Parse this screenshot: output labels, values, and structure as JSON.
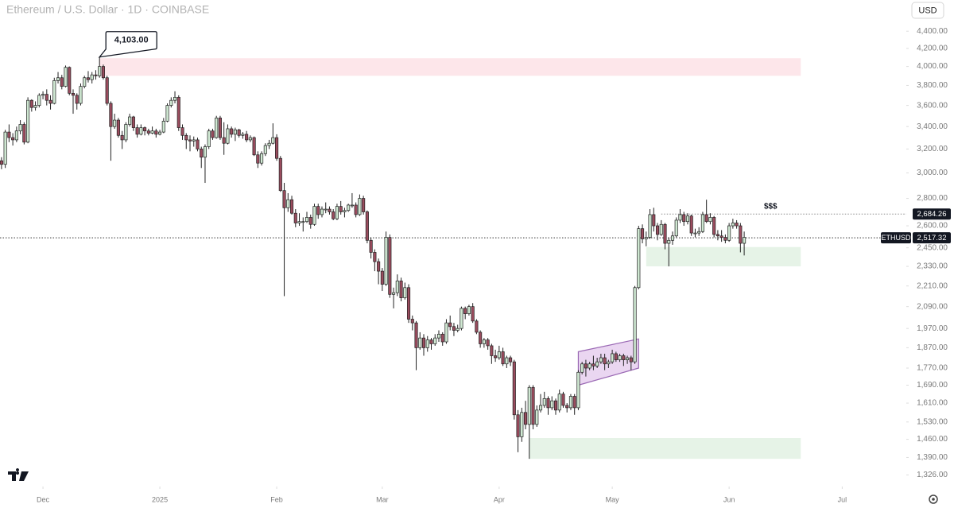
{
  "currency": "USD",
  "chart_data": {
    "type": "candlestick",
    "title": "Ethereum / U.S. Dollar · 1D · COINBASE",
    "log_scale": true,
    "grid": false,
    "color_up": "#cfe8d2",
    "color_down": "#9a4c5e",
    "outline": "#222222",
    "xlim": [
      -0.4,
      240
    ],
    "ylim": [
      1285,
      4787
    ],
    "xticks": [
      {
        "value": 11,
        "label": "Dec"
      },
      {
        "value": 42,
        "label": "2025"
      },
      {
        "value": 73,
        "label": "Feb"
      },
      {
        "value": 101,
        "label": "Mar"
      },
      {
        "value": 132,
        "label": "Apr"
      },
      {
        "value": 162,
        "label": "May"
      },
      {
        "value": 193,
        "label": "Jun"
      },
      {
        "value": 223,
        "label": "Jul"
      }
    ],
    "yticks": [
      {
        "value": 4400,
        "label": "4,400.00"
      },
      {
        "value": 4200,
        "label": "4,200.00"
      },
      {
        "value": 4000,
        "label": "4,000.00"
      },
      {
        "value": 3800,
        "label": "3,800.00"
      },
      {
        "value": 3600,
        "label": "3,600.00"
      },
      {
        "value": 3400,
        "label": "3,400.00"
      },
      {
        "value": 3200,
        "label": "3,200.00"
      },
      {
        "value": 3000,
        "label": "3,000.00"
      },
      {
        "value": 2800,
        "label": "2,800.00"
      },
      {
        "value": 2600,
        "label": "2,600.00"
      },
      {
        "value": 2450,
        "label": "2,450.00"
      },
      {
        "value": 2330,
        "label": "2,330.00"
      },
      {
        "value": 2210,
        "label": "2,210.00"
      },
      {
        "value": 2090,
        "label": "2,090.00"
      },
      {
        "value": 1970,
        "label": "1,970.00"
      },
      {
        "value": 1870,
        "label": "1,870.00"
      },
      {
        "value": 1770,
        "label": "1,770.00"
      },
      {
        "value": 1690,
        "label": "1,690.00"
      },
      {
        "value": 1610,
        "label": "1,610.00"
      },
      {
        "value": 1530,
        "label": "1,530.00"
      },
      {
        "value": 1460,
        "label": "1,460.00"
      },
      {
        "value": 1390,
        "label": "1,390.00"
      },
      {
        "value": 1326,
        "label": "1,326.00"
      }
    ],
    "zones": [
      {
        "from": 26,
        "to": 212,
        "low": 3900,
        "high": 4090,
        "color": "#fde6ea"
      },
      {
        "from": 171,
        "to": 212,
        "low": 2330,
        "high": 2455,
        "color": "#e6f3e7"
      },
      {
        "from": 140,
        "to": 212,
        "low": 1385,
        "high": 1465,
        "color": "#e6f3e7"
      }
    ],
    "channel": {
      "from": 153,
      "to": 169,
      "lower": [
        1690,
        1770
      ],
      "upper": [
        1850,
        1915
      ],
      "color": "#e3c8ec",
      "stroke": "#9a68b4"
    },
    "price_lines": [
      {
        "value": 2684.26,
        "label": "2,684.26",
        "from": 175,
        "color": "#8a8a8a"
      },
      {
        "value": 2517.32,
        "label": "2,517.32",
        "name": "ETHUSD",
        "from": -0.4,
        "color": "#333333"
      }
    ],
    "annotations": [
      {
        "text": "4,103.00",
        "x": 26,
        "y": 4103
      },
      {
        "text": "$$$",
        "x": 204,
        "y": 2740
      }
    ],
    "values": [
      [
        3100,
        3130,
        3030,
        3070
      ],
      [
        3070,
        3370,
        3040,
        3350
      ],
      [
        3350,
        3420,
        3260,
        3300
      ],
      [
        3300,
        3340,
        3230,
        3280
      ],
      [
        3280,
        3400,
        3260,
        3360
      ],
      [
        3360,
        3460,
        3330,
        3420
      ],
      [
        3420,
        3440,
        3240,
        3260
      ],
      [
        3260,
        3680,
        3250,
        3650
      ],
      [
        3650,
        3660,
        3540,
        3580
      ],
      [
        3580,
        3640,
        3550,
        3600
      ],
      [
        3600,
        3720,
        3580,
        3700
      ],
      [
        3700,
        3740,
        3660,
        3710
      ],
      [
        3710,
        3760,
        3600,
        3650
      ],
      [
        3650,
        3700,
        3560,
        3620
      ],
      [
        3620,
        3880,
        3610,
        3850
      ],
      [
        3850,
        3940,
        3820,
        3880
      ],
      [
        3880,
        3910,
        3760,
        3790
      ],
      [
        3790,
        4010,
        3780,
        3990
      ],
      [
        3990,
        4000,
        3700,
        3720
      ],
      [
        3720,
        3760,
        3520,
        3700
      ],
      [
        3700,
        3720,
        3560,
        3620
      ],
      [
        3620,
        3820,
        3600,
        3790
      ],
      [
        3790,
        3900,
        3770,
        3880
      ],
      [
        3880,
        3950,
        3830,
        3860
      ],
      [
        3860,
        3940,
        3820,
        3910
      ],
      [
        3910,
        3960,
        3860,
        3900
      ],
      [
        3900,
        4103,
        3880,
        4000
      ],
      [
        4000,
        4020,
        3860,
        3880
      ],
      [
        3880,
        3900,
        3600,
        3620
      ],
      [
        3620,
        3640,
        3100,
        3400
      ],
      [
        3400,
        3520,
        3380,
        3460
      ],
      [
        3460,
        3480,
        3300,
        3320
      ],
      [
        3320,
        3360,
        3200,
        3280
      ],
      [
        3280,
        3440,
        3260,
        3420
      ],
      [
        3420,
        3520,
        3400,
        3490
      ],
      [
        3490,
        3500,
        3360,
        3390
      ],
      [
        3390,
        3420,
        3300,
        3330
      ],
      [
        3330,
        3420,
        3320,
        3390
      ],
      [
        3390,
        3400,
        3320,
        3360
      ],
      [
        3360,
        3380,
        3320,
        3340
      ],
      [
        3340,
        3400,
        3330,
        3360
      ],
      [
        3360,
        3380,
        3300,
        3330
      ],
      [
        3330,
        3370,
        3320,
        3350
      ],
      [
        3350,
        3480,
        3340,
        3450
      ],
      [
        3450,
        3620,
        3440,
        3600
      ],
      [
        3600,
        3680,
        3580,
        3650
      ],
      [
        3650,
        3740,
        3620,
        3680
      ],
      [
        3680,
        3700,
        3360,
        3390
      ],
      [
        3390,
        3420,
        3280,
        3320
      ],
      [
        3320,
        3340,
        3200,
        3280
      ],
      [
        3280,
        3320,
        3180,
        3270
      ],
      [
        3270,
        3310,
        3220,
        3280
      ],
      [
        3280,
        3300,
        3180,
        3200
      ],
      [
        3200,
        3220,
        3040,
        3130
      ],
      [
        3130,
        3240,
        2920,
        3220
      ],
      [
        3220,
        3380,
        3200,
        3360
      ],
      [
        3360,
        3380,
        3280,
        3300
      ],
      [
        3300,
        3500,
        3290,
        3480
      ],
      [
        3480,
        3500,
        3280,
        3300
      ],
      [
        3300,
        3440,
        3150,
        3250
      ],
      [
        3250,
        3420,
        3240,
        3380
      ],
      [
        3380,
        3400,
        3300,
        3330
      ],
      [
        3330,
        3390,
        3270,
        3370
      ],
      [
        3370,
        3380,
        3300,
        3320
      ],
      [
        3320,
        3350,
        3290,
        3330
      ],
      [
        3330,
        3360,
        3260,
        3280
      ],
      [
        3280,
        3320,
        3260,
        3300
      ],
      [
        3300,
        3310,
        3140,
        3150
      ],
      [
        3150,
        3180,
        3040,
        3080
      ],
      [
        3080,
        3180,
        3060,
        3160
      ],
      [
        3160,
        3250,
        3140,
        3230
      ],
      [
        3230,
        3280,
        3200,
        3250
      ],
      [
        3250,
        3430,
        3240,
        3300
      ],
      [
        3300,
        3330,
        3100,
        3120
      ],
      [
        3120,
        3140,
        2850,
        2860
      ],
      [
        2860,
        2920,
        2150,
        2730
      ],
      [
        2730,
        2840,
        2700,
        2790
      ],
      [
        2790,
        2820,
        2680,
        2690
      ],
      [
        2690,
        2720,
        2590,
        2620
      ],
      [
        2620,
        2690,
        2600,
        2630
      ],
      [
        2630,
        2660,
        2560,
        2630
      ],
      [
        2630,
        2700,
        2620,
        2660
      ],
      [
        2660,
        2680,
        2580,
        2610
      ],
      [
        2610,
        2760,
        2600,
        2740
      ],
      [
        2740,
        2760,
        2650,
        2680
      ],
      [
        2680,
        2740,
        2660,
        2720
      ],
      [
        2720,
        2770,
        2690,
        2720
      ],
      [
        2720,
        2740,
        2680,
        2700
      ],
      [
        2700,
        2720,
        2640,
        2650
      ],
      [
        2650,
        2760,
        2640,
        2740
      ],
      [
        2740,
        2780,
        2680,
        2700
      ],
      [
        2700,
        2730,
        2660,
        2710
      ],
      [
        2710,
        2760,
        2700,
        2750
      ],
      [
        2750,
        2840,
        2730,
        2750
      ],
      [
        2750,
        2770,
        2660,
        2680
      ],
      [
        2680,
        2830,
        2670,
        2800
      ],
      [
        2800,
        2820,
        2680,
        2700
      ],
      [
        2700,
        2710,
        2480,
        2500
      ],
      [
        2500,
        2520,
        2380,
        2420
      ],
      [
        2420,
        2440,
        2300,
        2360
      ],
      [
        2360,
        2380,
        2220,
        2300
      ],
      [
        2300,
        2320,
        2180,
        2220
      ],
      [
        2220,
        2560,
        2210,
        2520
      ],
      [
        2520,
        2540,
        2140,
        2160
      ],
      [
        2160,
        2200,
        2080,
        2170
      ],
      [
        2170,
        2280,
        2150,
        2240
      ],
      [
        2240,
        2260,
        2120,
        2140
      ],
      [
        2140,
        2230,
        2130,
        2200
      ],
      [
        2200,
        2220,
        2000,
        2020
      ],
      [
        2020,
        2040,
        1960,
        2000
      ],
      [
        2000,
        2010,
        1760,
        1870
      ],
      [
        1870,
        1950,
        1860,
        1920
      ],
      [
        1920,
        1940,
        1830,
        1870
      ],
      [
        1870,
        1930,
        1850,
        1910
      ],
      [
        1910,
        1920,
        1860,
        1890
      ],
      [
        1890,
        1940,
        1880,
        1920
      ],
      [
        1920,
        1960,
        1900,
        1940
      ],
      [
        1940,
        1950,
        1880,
        1900
      ],
      [
        1900,
        2020,
        1890,
        2000
      ],
      [
        2000,
        2040,
        1960,
        1980
      ],
      [
        1980,
        2000,
        1930,
        1960
      ],
      [
        1960,
        1990,
        1950,
        1970
      ],
      [
        1970,
        2090,
        1960,
        2080
      ],
      [
        2080,
        2090,
        2020,
        2050
      ],
      [
        2050,
        2100,
        2040,
        2090
      ],
      [
        2090,
        2110,
        2000,
        2010
      ],
      [
        2010,
        2020,
        1940,
        1950
      ],
      [
        1950,
        1960,
        1870,
        1890
      ],
      [
        1890,
        1920,
        1870,
        1910
      ],
      [
        1910,
        1920,
        1860,
        1880
      ],
      [
        1880,
        1890,
        1790,
        1830
      ],
      [
        1830,
        1860,
        1800,
        1820
      ],
      [
        1820,
        1880,
        1810,
        1850
      ],
      [
        1850,
        1870,
        1780,
        1790
      ],
      [
        1790,
        1830,
        1770,
        1820
      ],
      [
        1820,
        1830,
        1780,
        1800
      ],
      [
        1800,
        1810,
        1540,
        1560
      ],
      [
        1560,
        1580,
        1410,
        1470
      ],
      [
        1470,
        1590,
        1450,
        1570
      ],
      [
        1570,
        1620,
        1500,
        1520
      ],
      [
        1520,
        1690,
        1385,
        1680
      ],
      [
        1680,
        1690,
        1500,
        1520
      ],
      [
        1520,
        1600,
        1510,
        1580
      ],
      [
        1580,
        1650,
        1570,
        1600
      ],
      [
        1600,
        1660,
        1590,
        1630
      ],
      [
        1630,
        1640,
        1560,
        1590
      ],
      [
        1590,
        1640,
        1580,
        1620
      ],
      [
        1620,
        1630,
        1560,
        1580
      ],
      [
        1580,
        1670,
        1570,
        1650
      ],
      [
        1650,
        1660,
        1590,
        1600
      ],
      [
        1600,
        1610,
        1570,
        1590
      ],
      [
        1590,
        1650,
        1580,
        1640
      ],
      [
        1640,
        1650,
        1560,
        1590
      ],
      [
        1590,
        1760,
        1580,
        1750
      ],
      [
        1750,
        1800,
        1740,
        1790
      ],
      [
        1790,
        1810,
        1730,
        1770
      ],
      [
        1770,
        1800,
        1760,
        1790
      ],
      [
        1790,
        1830,
        1760,
        1780
      ],
      [
        1780,
        1820,
        1770,
        1800
      ],
      [
        1800,
        1840,
        1790,
        1820
      ],
      [
        1820,
        1840,
        1760,
        1790
      ],
      [
        1790,
        1810,
        1770,
        1800
      ],
      [
        1800,
        1860,
        1790,
        1840
      ],
      [
        1840,
        1850,
        1800,
        1810
      ],
      [
        1810,
        1840,
        1800,
        1830
      ],
      [
        1830,
        1840,
        1780,
        1810
      ],
      [
        1810,
        1830,
        1790,
        1820
      ],
      [
        1820,
        1830,
        1760,
        1800
      ],
      [
        1800,
        2210,
        1790,
        2200
      ],
      [
        2200,
        2600,
        2190,
        2580
      ],
      [
        2580,
        2610,
        2480,
        2510
      ],
      [
        2510,
        2560,
        2460,
        2520
      ],
      [
        2520,
        2720,
        2510,
        2680
      ],
      [
        2680,
        2730,
        2560,
        2600
      ],
      [
        2600,
        2620,
        2500,
        2540
      ],
      [
        2540,
        2640,
        2530,
        2610
      ],
      [
        2610,
        2620,
        2440,
        2480
      ],
      [
        2480,
        2520,
        2330,
        2500
      ],
      [
        2500,
        2560,
        2470,
        2530
      ],
      [
        2530,
        2660,
        2520,
        2640
      ],
      [
        2640,
        2720,
        2620,
        2680
      ],
      [
        2680,
        2700,
        2600,
        2630
      ],
      [
        2630,
        2690,
        2610,
        2670
      ],
      [
        2670,
        2680,
        2530,
        2550
      ],
      [
        2550,
        2580,
        2520,
        2550
      ],
      [
        2550,
        2590,
        2530,
        2560
      ],
      [
        2560,
        2700,
        2550,
        2680
      ],
      [
        2680,
        2790,
        2620,
        2630
      ],
      [
        2630,
        2690,
        2610,
        2660
      ],
      [
        2660,
        2670,
        2520,
        2540
      ],
      [
        2540,
        2570,
        2500,
        2530
      ],
      [
        2530,
        2570,
        2490,
        2520
      ],
      [
        2520,
        2540,
        2480,
        2500
      ],
      [
        2500,
        2620,
        2490,
        2600
      ],
      [
        2600,
        2650,
        2580,
        2620
      ],
      [
        2620,
        2640,
        2580,
        2600
      ],
      [
        2600,
        2620,
        2420,
        2480
      ],
      [
        2480,
        2560,
        2400,
        2520
      ]
    ]
  }
}
